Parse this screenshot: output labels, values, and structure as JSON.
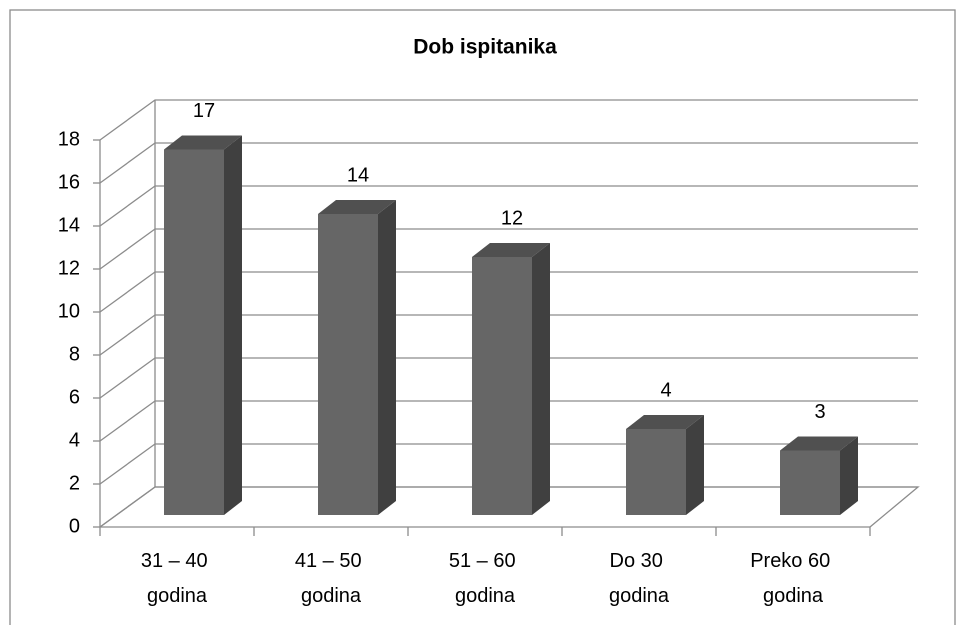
{
  "chart_data": {
    "type": "bar3d",
    "title": "Dob ispitanika",
    "categories": [
      "31 – 40 godina",
      "41 – 50 godina",
      "51 – 60 godina",
      "Do 30 godina",
      "Preko 60 godina"
    ],
    "values": [
      17,
      14,
      12,
      4,
      3
    ],
    "color": "#666666",
    "ylim": [
      0,
      18
    ],
    "yticks": [
      0,
      2,
      4,
      6,
      8,
      10,
      12,
      14,
      16,
      18
    ],
    "grid": true
  }
}
